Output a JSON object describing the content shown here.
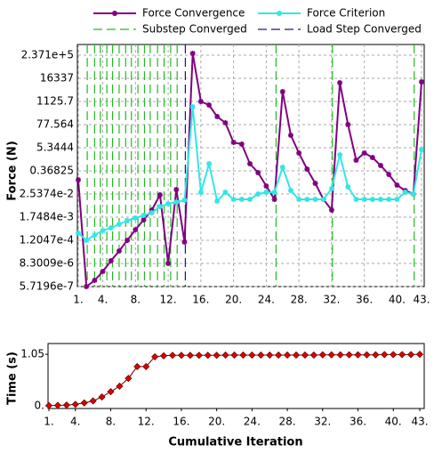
{
  "chart_data": [
    {
      "type": "line",
      "yscale": "log",
      "ylabel": "Force (N)",
      "grid": true,
      "legend": "top",
      "x": [
        1,
        2,
        3,
        4,
        5,
        6,
        7,
        8,
        9,
        10,
        11,
        12,
        13,
        14,
        15,
        16,
        17,
        18,
        19,
        20,
        21,
        22,
        23,
        24,
        25,
        26,
        27,
        28,
        29,
        30,
        31,
        32,
        33,
        34,
        35,
        36,
        37,
        38,
        39,
        40,
        41,
        42,
        43
      ],
      "xlim": [
        1,
        43
      ],
      "xticks": [
        {
          "value": 1,
          "label": "1."
        },
        {
          "value": 4,
          "label": "4."
        },
        {
          "value": 8,
          "label": "8."
        },
        {
          "value": 12,
          "label": "12."
        },
        {
          "value": 16,
          "label": "16."
        },
        {
          "value": 20,
          "label": "20."
        },
        {
          "value": 24,
          "label": "24."
        },
        {
          "value": 28,
          "label": "28."
        },
        {
          "value": 32,
          "label": "32."
        },
        {
          "value": 36,
          "label": "36."
        },
        {
          "value": 40,
          "label": "40."
        },
        {
          "value": 43,
          "label": "43."
        }
      ],
      "ylim": [
        5.7196e-07,
        237100
      ],
      "yticks": [
        5.7196e-07,
        {
          "value": 8.3009e-06,
          "label": "8.3009e-6"
        },
        {
          "value": 0.00012047,
          "label": "1.2047e-4"
        },
        {
          "value": 0.0017484,
          "label": "1.7484e-3"
        },
        {
          "value": 0.025374,
          "label": "2.5374e-2"
        },
        0.36825,
        5.3444,
        77.564,
        1125.7,
        16337,
        {
          "value": 237100,
          "label": "2.371e+5"
        }
      ],
      "series": [
        {
          "name": "Force Convergence",
          "color": "#800080",
          "values": [
            0.13,
            5.72e-07,
            1.17e-06,
            3.29e-06,
            1.13e-05,
            3.5e-05,
            0.00012,
            0.00041,
            0.00128,
            0.004,
            0.0229,
            8.3e-06,
            0.0424,
            9.8e-05,
            290000,
            1120,
            746,
            196,
            95,
            9.9,
            8.1,
            0.84,
            0.3,
            0.064,
            0.0137,
            3490,
            22.5,
            2.9,
            0.45,
            0.087,
            0.0137,
            0.004,
            9770,
            77.6,
            1.27,
            2.9,
            1.72,
            0.68,
            0.244,
            0.071,
            0.038,
            0.0254,
            10800
          ]
        },
        {
          "name": "Force Criterion",
          "color": "#33e6e6",
          "values": [
            0.000274,
            0.00012,
            0.00022,
            0.00037,
            0.00051,
            0.00077,
            0.00116,
            0.00158,
            0.00215,
            0.0029,
            0.006,
            0.0082,
            0.01,
            0.0124,
            607,
            0.031,
            0.84,
            0.0111,
            0.031,
            0.0137,
            0.0137,
            0.0137,
            0.0254,
            0.031,
            0.031,
            0.56,
            0.038,
            0.0137,
            0.0137,
            0.0137,
            0.0137,
            0.047,
            2.35,
            0.058,
            0.0137,
            0.0137,
            0.0137,
            0.0137,
            0.0137,
            0.0137,
            0.031,
            0.0254,
            4.35
          ]
        }
      ],
      "vlines": [
        {
          "name": "Substep Converged",
          "color": "#22bb22",
          "x": [
            2.1,
            3.0,
            3.7,
            4.5,
            5.2,
            6.0,
            6.8,
            7.5,
            8.3,
            9.1,
            9.8,
            10.7,
            11.5,
            12.3,
            13.1,
            25.2,
            32.1,
            42.1
          ]
        },
        {
          "name": "Load Step Converged",
          "color": "#1a1a80",
          "x": [
            14.1
          ]
        }
      ]
    },
    {
      "type": "line",
      "ylabel": "Time (s)",
      "xlabel": "Cumulative Iteration",
      "grid": false,
      "x": [
        1,
        2,
        3,
        4,
        5,
        6,
        7,
        8,
        9,
        10,
        11,
        12,
        13,
        14,
        15,
        16,
        17,
        18,
        19,
        20,
        21,
        22,
        23,
        24,
        25,
        26,
        27,
        28,
        29,
        30,
        31,
        32,
        33,
        34,
        35,
        36,
        37,
        38,
        39,
        40,
        41,
        42,
        43
      ],
      "xlim": [
        1,
        43
      ],
      "xticks": [
        {
          "value": 1,
          "label": "1."
        },
        {
          "value": 4,
          "label": "4."
        },
        {
          "value": 8,
          "label": "8."
        },
        {
          "value": 12,
          "label": "12."
        },
        {
          "value": 16,
          "label": "16."
        },
        {
          "value": 20,
          "label": "20."
        },
        {
          "value": 24,
          "label": "24."
        },
        {
          "value": 28,
          "label": "28."
        },
        {
          "value": 32,
          "label": "32."
        },
        {
          "value": 36,
          "label": "36."
        },
        {
          "value": 40,
          "label": "40."
        },
        {
          "value": 43,
          "label": "43."
        }
      ],
      "ylim": [
        0,
        1.27
      ],
      "yticks": [
        {
          "value": 0,
          "label": "0."
        },
        1.05
      ],
      "series": [
        {
          "color": "#e00000",
          "edge_color": "#700000",
          "values": [
            0.005,
            0.01,
            0.015,
            0.03,
            0.06,
            0.1,
            0.18,
            0.29,
            0.4,
            0.56,
            0.8,
            0.8,
            1.0,
            1.02,
            1.03,
            1.03,
            1.03,
            1.03,
            1.03,
            1.03,
            1.035,
            1.035,
            1.035,
            1.035,
            1.035,
            1.035,
            1.035,
            1.035,
            1.035,
            1.035,
            1.035,
            1.04,
            1.04,
            1.04,
            1.04,
            1.04,
            1.04,
            1.04,
            1.045,
            1.045,
            1.045,
            1.045,
            1.05
          ]
        }
      ]
    }
  ]
}
